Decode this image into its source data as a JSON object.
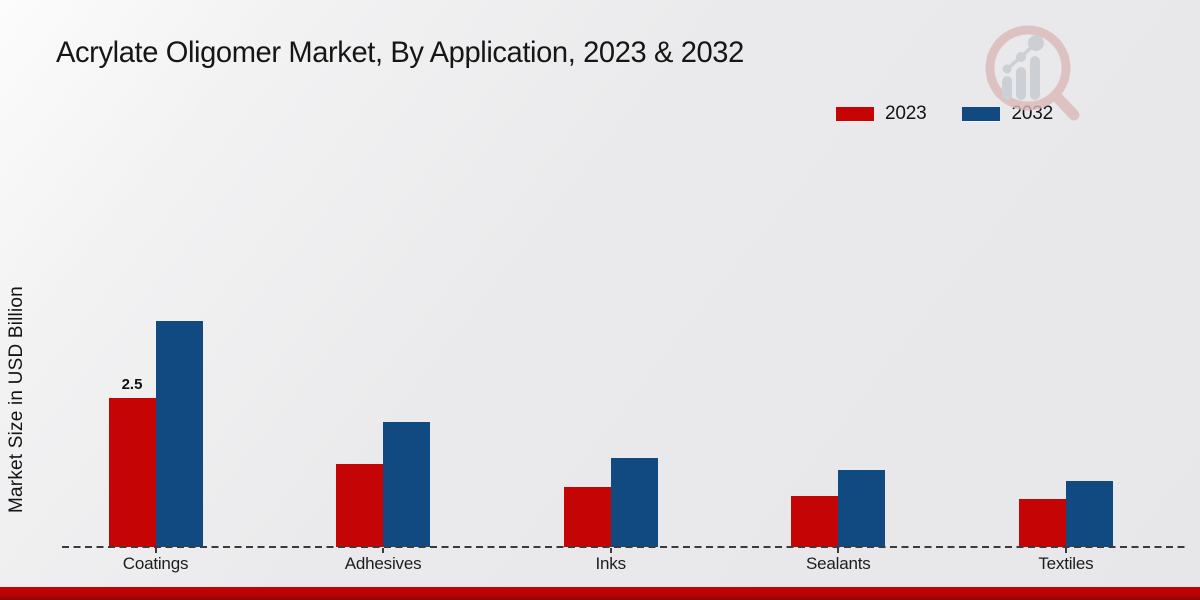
{
  "title": "Acrylate Oligomer Market, By Application, 2023 & 2032",
  "ylabel": "Market Size in USD Billion",
  "legend": [
    {
      "label": "2023",
      "color": "#c50505"
    },
    {
      "label": "2032",
      "color": "#114a80"
    }
  ],
  "colors": {
    "series_2023": "#c50505",
    "series_2032": "#114a80",
    "baseline": "#3b3b3b",
    "bottom_strip": "#c50303",
    "background": "#e9e9ea",
    "watermark_pink": "#dcb9b9",
    "watermark_gray": "#c5c9cf"
  },
  "icons": {
    "watermark": "magnifier-bar-chart-logo"
  },
  "chart_data": {
    "type": "bar",
    "title": "Acrylate Oligomer Market, By Application, 2023 & 2032",
    "categories": [
      "Coatings",
      "Adhesives",
      "Inks",
      "Sealants",
      "Textiles"
    ],
    "series": [
      {
        "name": "2023",
        "color": "#c50505",
        "values": [
          2.5,
          1.4,
          1.0,
          0.85,
          0.8
        ]
      },
      {
        "name": "2032",
        "color": "#114a80",
        "values": [
          3.8,
          2.1,
          1.5,
          1.3,
          1.1
        ]
      }
    ],
    "annotations": [
      {
        "category": "Coatings",
        "series": "2023",
        "text": "2.5"
      }
    ],
    "xlabel": "",
    "ylabel": "Market Size in USD Billion",
    "ylim": [
      0,
      4.5
    ],
    "grid": false,
    "legend_position": "top-right",
    "zero_line": "dashed"
  }
}
